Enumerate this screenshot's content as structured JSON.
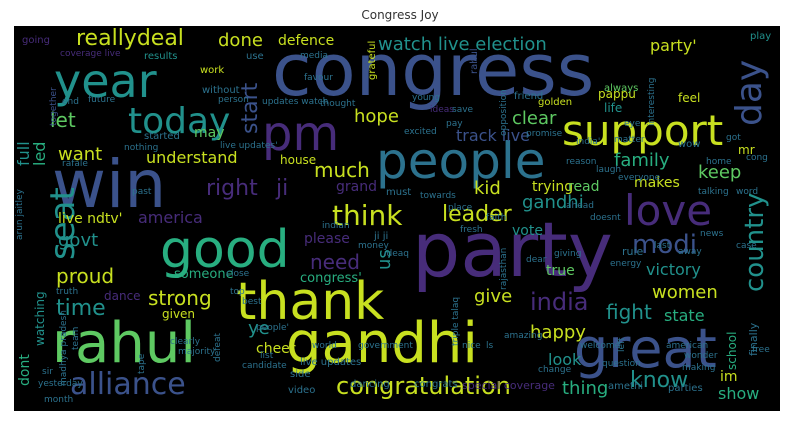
{
  "title": "Congress  Joy",
  "palette": {
    "purple": "#472c7a",
    "indigo": "#3b528b",
    "blue": "#2c728e",
    "teal": "#21918c",
    "green": "#28ae80",
    "lime": "#5ec962",
    "yellow": "#c8e020",
    "light": "#addc30"
  },
  "words": [
    "congress",
    "party",
    "win",
    "people",
    "rahul",
    "gandhi",
    "year",
    "good",
    "thank",
    "great",
    "pm",
    "support",
    "love",
    "alliance",
    "congratulation",
    "today",
    "seat",
    "day",
    "country",
    "modi",
    "watch live election",
    "party'",
    "reallydeal",
    "done",
    "defence",
    "want",
    "understand",
    "much",
    "family",
    "keep",
    "hope",
    "clear",
    "track live",
    "start",
    "let",
    "right",
    "ji",
    "think",
    "leader",
    "gandhi",
    "america",
    "govt",
    "need",
    "us",
    "india",
    "fight",
    "state",
    "women",
    "victory",
    "proud",
    "strong",
    "give",
    "time",
    "happy",
    "know",
    "thing",
    "show",
    "im",
    "ye",
    "cheer",
    "dont",
    "watching",
    "full",
    "led",
    "live ndtv'",
    "grand",
    "kid",
    "house",
    "vote",
    "true",
    "someone",
    "dance",
    "given",
    "congress'",
    "please",
    "look",
    "trying",
    "read",
    "makes",
    "may",
    "school",
    "finally",
    "pappu",
    "life",
    "friend",
    "always",
    "golden",
    "feel",
    "play",
    "going",
    "coverage live",
    "results",
    "use",
    "media",
    "rahul",
    "together",
    "end",
    "future",
    "work",
    "favour",
    "grateful",
    "young",
    "without",
    "person",
    "updates watch",
    "thought",
    "ideas",
    "save",
    "opposition",
    "interesting",
    "started",
    "live updates'",
    "excited",
    "pay",
    "promise",
    "nothing",
    "rafale",
    "india'",
    "matter",
    "eye",
    "wow",
    "got",
    "mr",
    "cong",
    "home",
    "word",
    "talking",
    "everyone",
    "reason",
    "towards",
    "fresh",
    "faith",
    "place",
    "laugh",
    "doesnt",
    "must",
    "indian",
    "ji ji",
    "ideaq",
    "money",
    "rule",
    "giving",
    "rajasthan",
    "dear",
    "energy",
    "last",
    "away",
    "news",
    "case",
    "ahead",
    "arun jaitley",
    "truth",
    "top",
    "close",
    "dancing",
    "congrats",
    "special coverage",
    "amethi",
    "parties",
    "video",
    "side",
    "live updates",
    "world",
    "government",
    "nice",
    "ls",
    "amazing",
    "welcome",
    "american",
    "free",
    "question",
    "making",
    "wonder",
    "change",
    "left",
    "candidate",
    "defeat",
    "list",
    "majority",
    "clearly",
    "madhya pradesh",
    "tape",
    "yesterday",
    "month",
    "sir",
    "team",
    "people'",
    "triple talaq",
    "past",
    "best"
  ]
}
